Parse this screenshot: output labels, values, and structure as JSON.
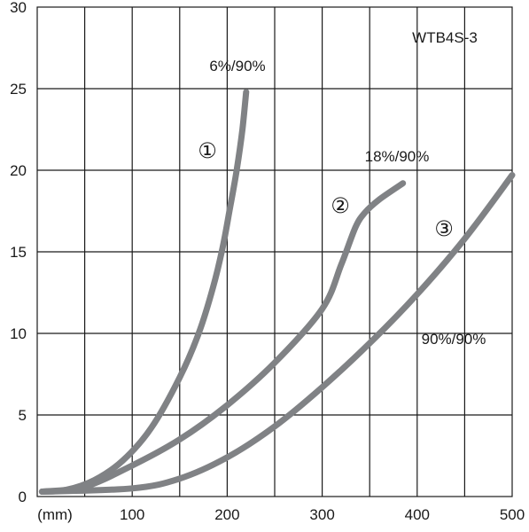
{
  "chart_data": {
    "type": "line",
    "title": "WTB4S-3",
    "x_unit_label": "(mm)",
    "x_ticks": [
      100,
      200,
      300,
      400,
      500
    ],
    "y_ticks": [
      0,
      5,
      10,
      15,
      20,
      25,
      30
    ],
    "xlim": [
      0,
      500
    ],
    "ylim": [
      0,
      30
    ],
    "grid": true,
    "series": [
      {
        "marker": "①",
        "name": "6%/90%",
        "x": [
          5,
          30,
          60,
          90,
          120,
          150,
          170,
          185,
          195,
          203,
          210,
          216,
          220
        ],
        "y": [
          0.3,
          0.4,
          1.0,
          2.2,
          4.2,
          7.3,
          10.0,
          12.8,
          15.2,
          17.7,
          20.0,
          22.5,
          24.8
        ]
      },
      {
        "marker": "②",
        "name": "18%/90%",
        "x": [
          5,
          50,
          100,
          150,
          200,
          250,
          300,
          320,
          335,
          345,
          360,
          385
        ],
        "y": [
          0.3,
          0.6,
          1.9,
          3.5,
          5.6,
          8.2,
          11.5,
          14.2,
          16.5,
          17.4,
          18.2,
          19.2
        ]
      },
      {
        "marker": "③",
        "name": "90%/90%",
        "x": [
          5,
          100,
          150,
          200,
          250,
          300,
          350,
          400,
          450,
          500
        ],
        "y": [
          0.3,
          0.5,
          1.1,
          2.4,
          4.3,
          6.7,
          9.4,
          12.4,
          15.8,
          19.7
        ]
      }
    ]
  }
}
